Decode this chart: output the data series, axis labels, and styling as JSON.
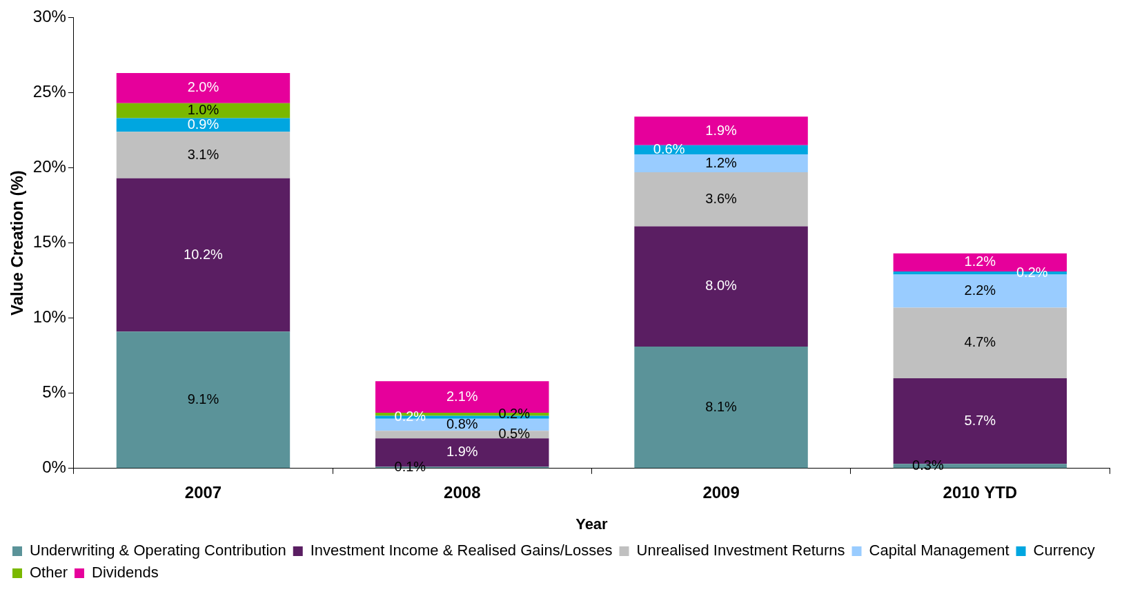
{
  "chart_data": {
    "type": "bar",
    "stacked": true,
    "xlabel": "Year",
    "ylabel": "Value Creation (%)",
    "categories": [
      "2007",
      "2008",
      "2009",
      "2010 YTD"
    ],
    "series": [
      {
        "name": "Underwriting & Operating Contribution",
        "color": "#5b9399",
        "values": [
          9.1,
          0.1,
          8.1,
          0.3
        ],
        "value_labels": [
          "9.1%",
          "0.1%",
          "8.1%",
          "0.3%"
        ]
      },
      {
        "name": "Investment Income & Realised Gains/Losses",
        "color": "#5a1e62",
        "values": [
          10.2,
          1.9,
          8.0,
          5.7
        ],
        "value_labels": [
          "10.2%",
          "1.9%",
          "8.0%",
          "5.7%"
        ]
      },
      {
        "name": "Unrealised Investment Returns",
        "color": "#c0c0c0",
        "values": [
          3.1,
          0.5,
          3.6,
          4.7
        ],
        "value_labels": [
          "3.1%",
          "0.5%",
          "3.6%",
          "4.7%"
        ]
      },
      {
        "name": "Capital Management",
        "color": "#99ccff",
        "values": [
          null,
          0.8,
          1.2,
          2.2
        ],
        "value_labels": [
          null,
          "0.8%",
          "1.2%",
          "2.2%"
        ]
      },
      {
        "name": "Currency",
        "color": "#00a6e0",
        "values": [
          0.9,
          0.2,
          0.6,
          0.2
        ],
        "value_labels": [
          "0.9%",
          "0.2%",
          "0.6%",
          "0.2%"
        ]
      },
      {
        "name": "Other",
        "color": "#7ab800",
        "values": [
          1.0,
          0.2,
          null,
          null
        ],
        "value_labels": [
          "1.0%",
          "0.2%",
          null,
          null
        ]
      },
      {
        "name": "Dividends",
        "color": "#e6009b",
        "values": [
          2.0,
          2.1,
          1.9,
          1.2
        ],
        "value_labels": [
          "2.0%",
          "2.1%",
          "1.9%",
          "1.2%"
        ]
      }
    ],
    "ylim": [
      0,
      30
    ],
    "yticks": [
      {
        "value": 0,
        "label": "0%"
      },
      {
        "value": 5,
        "label": "5%"
      },
      {
        "value": 10,
        "label": "10%"
      },
      {
        "value": 15,
        "label": "15%"
      },
      {
        "value": 20,
        "label": "20%"
      },
      {
        "value": 25,
        "label": "25%"
      },
      {
        "value": 30,
        "label": "30%"
      }
    ],
    "legend": "bottom"
  }
}
